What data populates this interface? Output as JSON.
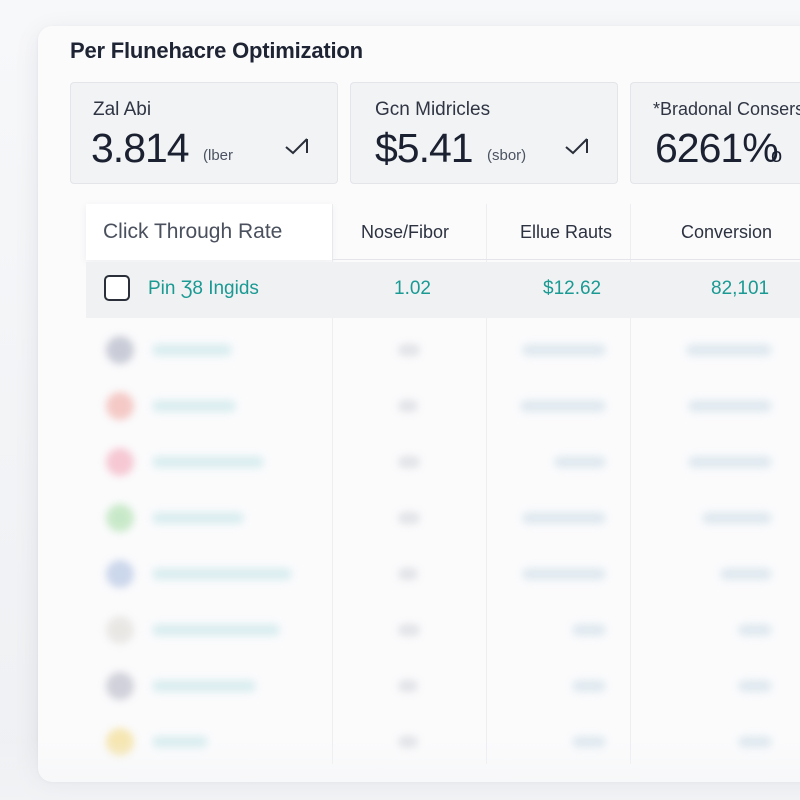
{
  "title": "Per Flunehacre Optimization",
  "stats": [
    {
      "label": "Zal Abi",
      "value": "3.814",
      "unit": "(lber",
      "trend_icon": "trend-up-icon"
    },
    {
      "label": "Gcn Midricles",
      "value": "$5.41",
      "unit": "(sbor)",
      "trend_icon": "trend-up-icon"
    },
    {
      "label": "*Bradonal Consers",
      "value": "6261%",
      "unit": "o",
      "trend_icon": ""
    }
  ],
  "table": {
    "columns": [
      "Click Through Rate",
      "Nose/Fibor",
      "Ellue Rauts",
      "Conversion"
    ],
    "first_row": {
      "checked": false,
      "name": "Pin Ʒ8 Ingids",
      "col2": "1.02",
      "col3": "$12.62",
      "col4": "82,101"
    },
    "blurred_row_dot_colors": [
      "#b9bccb",
      "#f2b9b4",
      "#f4b7c6",
      "#b8e3b8",
      "#bccbe6",
      "#e3e1dd",
      "#c2c3cf",
      "#f3df9a"
    ]
  },
  "colors": {
    "accent": "#1a9a93",
    "text_dark": "#1b2131",
    "panel_bg": "#fbfbfc",
    "card_bg": "#f2f3f5"
  }
}
